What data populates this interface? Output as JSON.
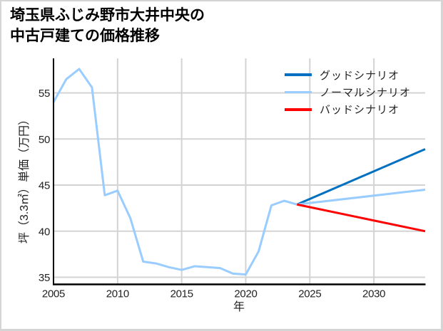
{
  "chart_data": {
    "type": "line",
    "title": "埼玉県ふじみ野市大井中央の中古戸建ての価格推移",
    "title_lines": [
      "埼玉県ふじみ野市大井中央の",
      "中古戸建ての価格推移"
    ],
    "xlabel": "年",
    "ylabel": "坪（3.3㎡）単価（万円）",
    "xlim": [
      2005,
      2034
    ],
    "ylim": [
      34.27,
      58.75
    ],
    "xticks": [
      2005,
      2010,
      2015,
      2020,
      2025,
      2030
    ],
    "yticks": [
      35,
      40,
      45,
      50,
      55
    ],
    "grid": true,
    "legend_position": "upper right",
    "series": [
      {
        "name": "グッドシナリオ",
        "color": "#0070c0",
        "x": [
          2024,
          2034
        ],
        "values": [
          42.9,
          48.9
        ]
      },
      {
        "name": "ノーマルシナリオ",
        "color": "#99ccff",
        "x": [
          2005,
          2006,
          2007,
          2008,
          2009,
          2010,
          2011,
          2012,
          2013,
          2014,
          2015,
          2016,
          2017,
          2018,
          2019,
          2020,
          2021,
          2022,
          2023,
          2024,
          2034
        ],
        "values": [
          54.0,
          56.5,
          57.6,
          55.6,
          43.9,
          44.4,
          41.4,
          36.7,
          36.5,
          36.1,
          35.8,
          36.2,
          36.1,
          36.0,
          35.4,
          35.3,
          37.8,
          42.8,
          43.3,
          42.9,
          44.5
        ]
      },
      {
        "name": "バッドシナリオ",
        "color": "#ff0000",
        "x": [
          2024,
          2034
        ],
        "values": [
          42.9,
          40.0
        ]
      }
    ]
  }
}
